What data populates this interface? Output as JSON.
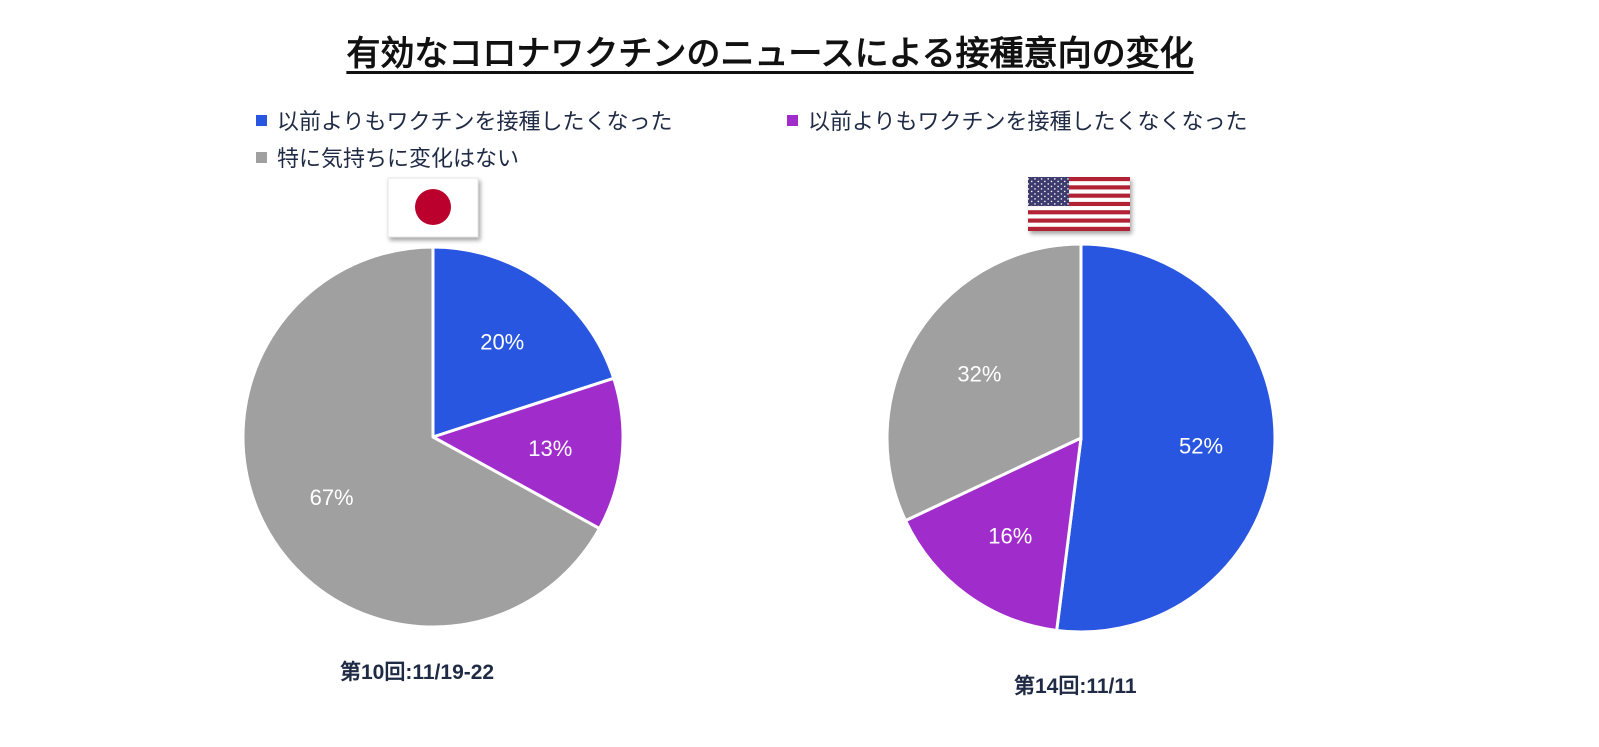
{
  "title": "有効なコロナワクチンのニュースによる接種意向の変化",
  "legend": [
    {
      "label": "以前よりもワクチンを接種したくなった",
      "color": "#2956e0"
    },
    {
      "label": "以前よりもワクチンを接種したくなくなった",
      "color": "#a12ccc"
    },
    {
      "label": "特に気持ちに変化はない",
      "color": "#a0a0a0"
    }
  ],
  "flags": {
    "left": "japan-flag",
    "right": "us-flag"
  },
  "chart_data": [
    {
      "type": "pie",
      "caption": "第10回:11/19-22",
      "slices": [
        {
          "label": "以前よりもワクチンを接種したくなった",
          "value": 20,
          "display": "20%",
          "color": "#2956e0"
        },
        {
          "label": "以前よりもワクチンを接種したくなくなった",
          "value": 13,
          "display": "13%",
          "color": "#a12ccc"
        },
        {
          "label": "特に気持ちに変化はない",
          "value": 67,
          "display": "67%",
          "color": "#a0a0a0"
        }
      ]
    },
    {
      "type": "pie",
      "caption": "第14回:11/11",
      "slices": [
        {
          "label": "以前よりもワクチンを接種したくなった",
          "value": 52,
          "display": "52%",
          "color": "#2956e0"
        },
        {
          "label": "以前よりもワクチンを接種したくなくなった",
          "value": 16,
          "display": "16%",
          "color": "#a12ccc"
        },
        {
          "label": "特に気持ちに変化はない",
          "value": 32,
          "display": "32%",
          "color": "#a0a0a0"
        }
      ]
    }
  ]
}
